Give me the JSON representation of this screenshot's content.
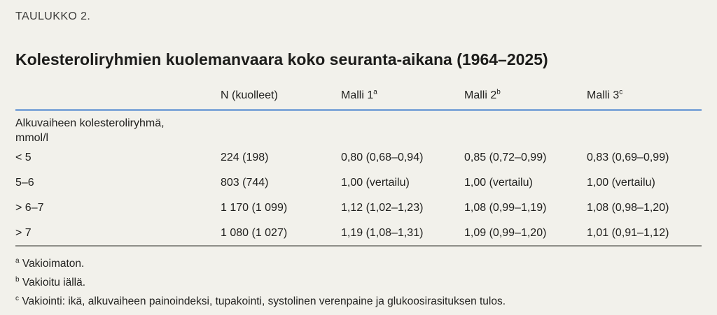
{
  "colors": {
    "background": "#f2f1eb",
    "text": "#21211f",
    "kicker": "#3f3f3d",
    "header_rule": "#84a9d8",
    "bottom_rule": "#8f8f89"
  },
  "page": {
    "kicker": "TAULUKKO 2.",
    "title": "Kolesteroliryhmien kuolemanvaara koko seuranta-aikana (1964–2025)"
  },
  "table": {
    "columns": [
      {
        "label": "N (kuolleet)",
        "sup": ""
      },
      {
        "label": "Malli 1",
        "sup": "a"
      },
      {
        "label": "Malli 2",
        "sup": "b"
      },
      {
        "label": "Malli 3",
        "sup": "c"
      }
    ],
    "row_header": {
      "line1": "Alkuvaiheen kolesteroliryhmä,",
      "line2": "mmol/l"
    },
    "rows": [
      {
        "group": "< 5",
        "n": "224 (198)",
        "m1": "0,80 (0,68–0,94)",
        "m2": "0,85 (0,72–0,99)",
        "m3": "0,83 (0,69–0,99)"
      },
      {
        "group": "5–6",
        "n": "803 (744)",
        "m1": "1,00 (vertailu)",
        "m2": "1,00 (vertailu)",
        "m3": "1,00 (vertailu)"
      },
      {
        "group": "> 6–7",
        "n": "1 170 (1 099)",
        "m1": "1,12 (1,02–1,23)",
        "m2": "1,08 (0,99–1,19)",
        "m3": "1,08 (0,98–1,20)"
      },
      {
        "group": "> 7",
        "n": "1 080 (1 027)",
        "m1": "1,19 (1,08–1,31)",
        "m2": "1,09 (0,99–1,20)",
        "m3": "1,01 (0,91–1,12)"
      }
    ],
    "footnotes": [
      {
        "marker": "a",
        "text": "Vakioimaton."
      },
      {
        "marker": "b",
        "text": "Vakioitu iällä."
      },
      {
        "marker": "c",
        "text": "Vakiointi: ikä, alkuvaiheen painoindeksi, tupakointi, systolinen verenpaine ja glukoosirasituksen tulos."
      }
    ]
  }
}
